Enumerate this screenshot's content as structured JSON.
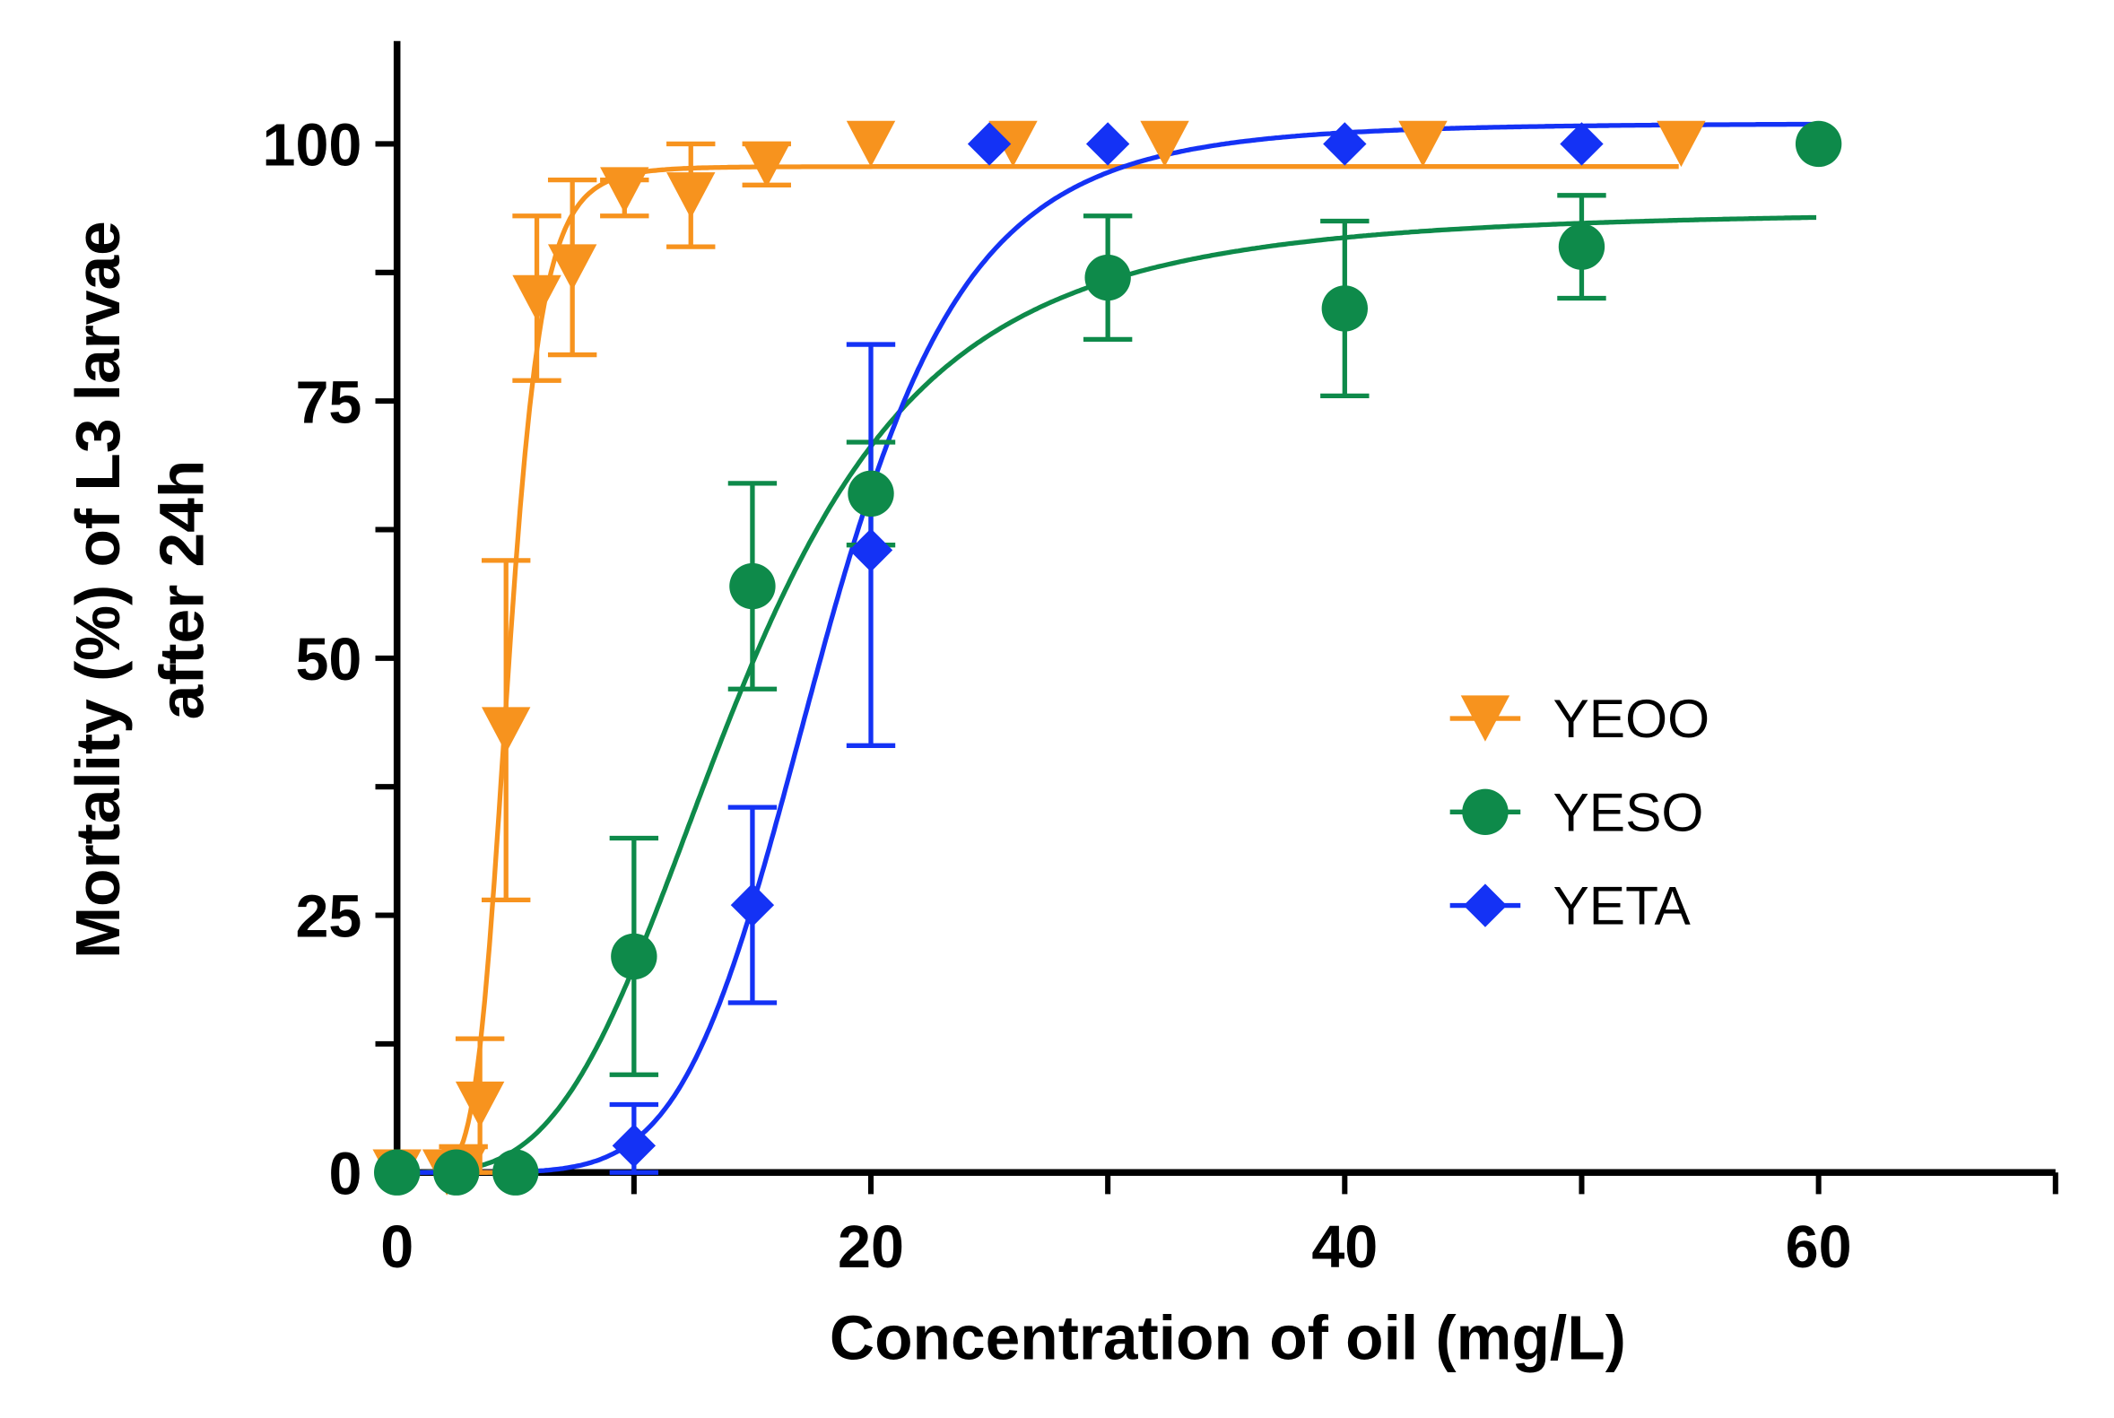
{
  "chart_data": {
    "type": "scatter",
    "xlabel": "Concentration of oil (mg/L)",
    "ylabel_line1": "Mortality (%) of L3  larvae",
    "ylabel_line2": "after 24h",
    "xlim": [
      0,
      70
    ],
    "ylim": [
      0,
      110
    ],
    "x_ticks": [
      0,
      20,
      40,
      60
    ],
    "y_ticks": [
      0,
      25,
      50,
      75,
      100
    ],
    "grid": false,
    "legend_position": "center-right",
    "series": [
      {
        "name": "YEOO",
        "color": "#F7931E",
        "marker": "triangle-down",
        "points": [
          {
            "x": 0,
            "y": 0
          },
          {
            "x": 2.1,
            "y": 0
          },
          {
            "x": 2.8,
            "y": 0.5,
            "err": [
              0,
              2.5
            ]
          },
          {
            "x": 3.5,
            "y": 6.6,
            "err": [
              0,
              13
            ]
          },
          {
            "x": 4.6,
            "y": 43,
            "err": [
              26.5,
              59.5
            ]
          },
          {
            "x": 5.9,
            "y": 85,
            "err": [
              77,
              93
            ]
          },
          {
            "x": 7.4,
            "y": 88,
            "err": [
              79.5,
              96.5
            ]
          },
          {
            "x": 9.6,
            "y": 95.5,
            "err": [
              93,
              96.5
            ]
          },
          {
            "x": 12.4,
            "y": 95,
            "err": [
              90,
              100
            ]
          },
          {
            "x": 15.6,
            "y": 98,
            "err": [
              96,
              100
            ]
          },
          {
            "x": 20,
            "y": 100
          },
          {
            "x": 26,
            "y": 100
          },
          {
            "x": 32.4,
            "y": 100
          },
          {
            "x": 43.3,
            "y": 100
          },
          {
            "x": 54.2,
            "y": 100
          }
        ],
        "fit": {
          "top": 97.8,
          "ec50": 4.7,
          "hill": 6.6,
          "xmax": 54.2
        }
      },
      {
        "name": "YESO",
        "color": "#0E8A4A",
        "marker": "circle",
        "points": [
          {
            "x": 0,
            "y": 0
          },
          {
            "x": 2.5,
            "y": 0
          },
          {
            "x": 5,
            "y": 0
          },
          {
            "x": 10,
            "y": 21,
            "err": [
              9.5,
              32.5
            ]
          },
          {
            "x": 15,
            "y": 57,
            "err": [
              47,
              67
            ]
          },
          {
            "x": 20,
            "y": 66,
            "err": [
              61,
              71
            ]
          },
          {
            "x": 30,
            "y": 87,
            "err": [
              81,
              93
            ]
          },
          {
            "x": 40,
            "y": 84,
            "err": [
              75.5,
              92.5
            ]
          },
          {
            "x": 50,
            "y": 90,
            "err": [
              85,
              95
            ]
          },
          {
            "x": 60,
            "y": 100
          }
        ],
        "fit": {
          "top": 93.5,
          "ec50": 14.5,
          "hill": 3.5,
          "xmax": 60
        }
      },
      {
        "name": "YETA",
        "color": "#1432F5",
        "marker": "diamond",
        "points": [
          {
            "x": 10,
            "y": 2.6,
            "err": [
              0,
              6.6
            ]
          },
          {
            "x": 15,
            "y": 26,
            "err": [
              16.5,
              35.5
            ]
          },
          {
            "x": 20,
            "y": 60.5,
            "err": [
              41.5,
              80.5
            ]
          },
          {
            "x": 25,
            "y": 100
          },
          {
            "x": 30,
            "y": 100
          },
          {
            "x": 40,
            "y": 100
          },
          {
            "x": 50,
            "y": 100
          }
        ],
        "fit": {
          "top": 102,
          "ec50": 18,
          "hill": 5.9,
          "xmax": 60
        }
      }
    ]
  }
}
